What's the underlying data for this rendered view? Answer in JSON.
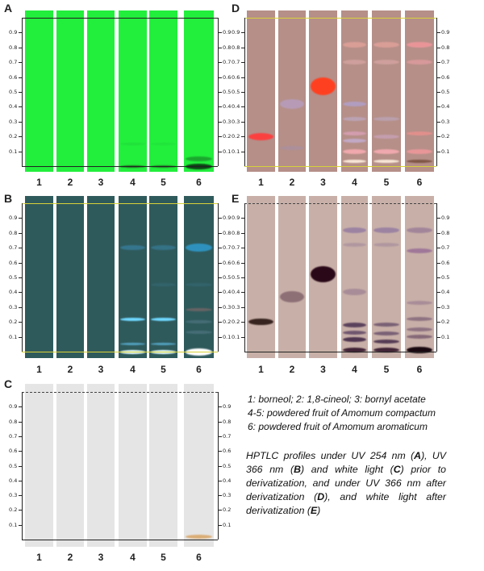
{
  "panels": {
    "A": {
      "label": "A",
      "lanes": [
        "1",
        "2",
        "3",
        "4",
        "5",
        "6"
      ]
    },
    "B": {
      "label": "B",
      "lanes": [
        "1",
        "2",
        "3",
        "4",
        "5",
        "6"
      ]
    },
    "C": {
      "label": "C",
      "lanes": [
        "1",
        "2",
        "3",
        "4",
        "5",
        "6"
      ]
    },
    "D": {
      "label": "D",
      "lanes": [
        "1",
        "2",
        "3",
        "4",
        "5",
        "6"
      ]
    },
    "E": {
      "label": "E",
      "lanes": [
        "1",
        "2",
        "3",
        "4",
        "5",
        "6"
      ]
    }
  },
  "rf_ticks": [
    "0.9",
    "0.8",
    "0.7",
    "0.6",
    "0.5",
    "0.4",
    "0.3",
    "0.2",
    "0.1"
  ],
  "colors": {
    "A_plate": "#22ee3c",
    "B_plate": "#2f5a5c",
    "C_plate": "#e5e5e5",
    "D_plate": "#b58f88",
    "E_plate": "#c8b0a8",
    "front_line_yellow": "#d8d23a"
  },
  "legend": {
    "line1": "1: borneol; 2: 1,8-cineol; 3: bornyl acetate",
    "line2": "4-5: powdered fruit of Amomum compactum",
    "line3": "6: powdered fruit of Amomum aromaticum"
  },
  "caption": {
    "p1": "HPTLC profiles under UV 254 nm (",
    "A": "A",
    "p2": "), UV 366 nm (",
    "B": "B",
    "p3": ") and white light (",
    "C": "C",
    "p4": ") prior to derivatization, and under UV 366 nm after derivatization (",
    "D": "D",
    "p5": "), and white light after derivatization (",
    "E": "E",
    "p6": ")"
  }
}
